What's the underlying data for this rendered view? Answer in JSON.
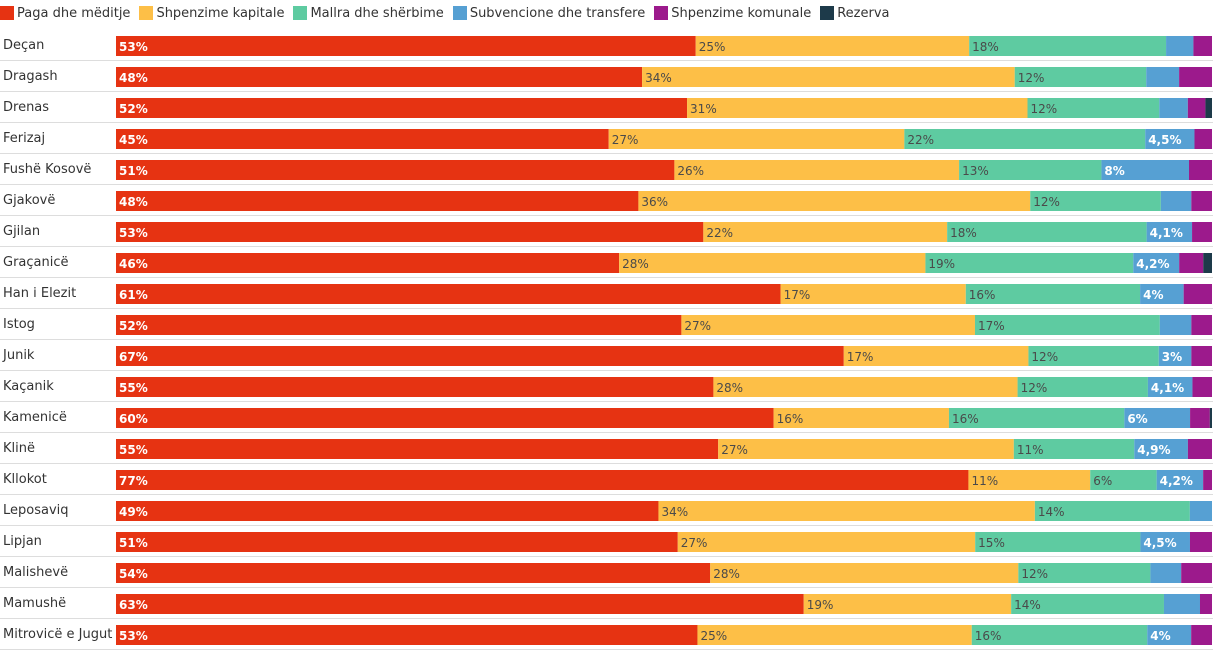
{
  "chart_data": {
    "type": "bar",
    "orientation": "horizontal",
    "stacked": true,
    "percent_stacked": true,
    "legend_position": "top-left",
    "categories": [
      "Deçan",
      "Dragash",
      "Drenas",
      "Ferizaj",
      "Fushë Kosovë",
      "Gjakovë",
      "Gjilan",
      "Graçanicë",
      "Han i Elezit",
      "Istog",
      "Junik",
      "Kaçanik",
      "Kamenicë",
      "Klinë",
      "Kllokot",
      "Leposaviq",
      "Lipjan",
      "Malishevë",
      "Mamushë",
      "Mitrovicë e Jugut"
    ],
    "series": [
      {
        "name": "Paga dhe mëditje",
        "color": "#e63312",
        "values": [
          53,
          48,
          52,
          45,
          51,
          48,
          53,
          46,
          61,
          52,
          67,
          55,
          60,
          55,
          77,
          49,
          51,
          54,
          63,
          53
        ],
        "labels": [
          "53%",
          "48%",
          "52%",
          "45%",
          "51%",
          "48%",
          "53%",
          "46%",
          "61%",
          "52%",
          "67%",
          "55%",
          "60%",
          "55%",
          "77%",
          "49%",
          "51%",
          "54%",
          "63%",
          "53%"
        ]
      },
      {
        "name": "Shpenzime kapitale",
        "color": "#fdbf47",
        "values": [
          25,
          34,
          31,
          27,
          26,
          36,
          22,
          28,
          17,
          27,
          17,
          28,
          16,
          27,
          11,
          34,
          27,
          28,
          19,
          25
        ],
        "labels": [
          "25%",
          "34%",
          "31%",
          "27%",
          "26%",
          "36%",
          "22%",
          "28%",
          "17%",
          "27%",
          "17%",
          "28%",
          "16%",
          "27%",
          "11%",
          "34%",
          "27%",
          "28%",
          "19%",
          "25%"
        ]
      },
      {
        "name": "Mallra dhe shërbime",
        "color": "#5ecba1",
        "values": [
          18,
          12,
          12,
          22,
          13,
          12,
          18,
          19,
          16,
          17,
          12,
          12,
          16,
          11,
          6,
          14,
          15,
          12,
          14,
          16
        ],
        "labels": [
          "18%",
          "12%",
          "12%",
          "22%",
          "13%",
          "12%",
          "18%",
          "19%",
          "16%",
          "17%",
          "12%",
          "12%",
          "16%",
          "11%",
          "6%",
          "14%",
          "15%",
          "12%",
          "14%",
          "16%"
        ]
      },
      {
        "name": "Subvencione dhe transfere",
        "color": "#56a0d3",
        "values": [
          2.5,
          3,
          2.6,
          4.5,
          8,
          2.8,
          4.1,
          4.2,
          4,
          2.9,
          3,
          4.1,
          6,
          4.9,
          4.2,
          2,
          4.5,
          2.8,
          3.3,
          4
        ],
        "labels": [
          "",
          "",
          "",
          "4,5%",
          "8%",
          "",
          "4,1%",
          "4,2%",
          "4%",
          "",
          "3%",
          "4,1%",
          "6%",
          "4,9%",
          "4,2%",
          "",
          "4,5%",
          "",
          "",
          "4%"
        ]
      },
      {
        "name": "Shpenzime komunale",
        "color": "#9c1a8c",
        "values": [
          1.7,
          3,
          1.6,
          1.6,
          2.1,
          1.9,
          1.8,
          2.2,
          2.6,
          1.9,
          1.9,
          1.8,
          1.8,
          2.2,
          0.8,
          0,
          2,
          2.8,
          1.1,
          1.9
        ],
        "labels": [
          "",
          "",
          "",
          "",
          "",
          "",
          "",
          "",
          "",
          "",
          "",
          "",
          "",
          "",
          "",
          "",
          "",
          "",
          "",
          ""
        ]
      },
      {
        "name": "Rezerva",
        "color": "#1d3a4a",
        "values": [
          0,
          0,
          0.6,
          0,
          0,
          0,
          0,
          0.8,
          0,
          0,
          0,
          0,
          0.2,
          0,
          0,
          0,
          0,
          0,
          0,
          0
        ],
        "labels": [
          "",
          "",
          "",
          "",
          "",
          "",
          "",
          "",
          "",
          "",
          "",
          "",
          "",
          "",
          "",
          "",
          "",
          "",
          "",
          ""
        ]
      }
    ]
  }
}
